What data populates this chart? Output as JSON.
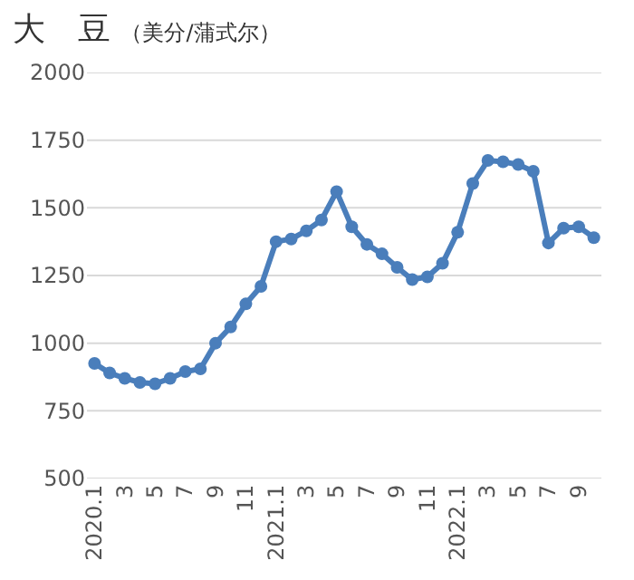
{
  "chart_data": {
    "type": "line",
    "title": "大　豆",
    "subtitle": "（美分/蒲式尔）",
    "categories": [
      "2020.1",
      null,
      "3",
      null,
      "5",
      null,
      "7",
      null,
      "9",
      null,
      "11",
      null,
      "2021.1",
      null,
      "3",
      null,
      "5",
      null,
      "7",
      null,
      "9",
      null,
      "11",
      null,
      "2022.1",
      null,
      "3",
      null,
      "5",
      null,
      "7",
      null,
      "9",
      null
    ],
    "series": [
      {
        "color": "#4a7ebb",
        "values": [
          925,
          890,
          870,
          855,
          850,
          870,
          895,
          905,
          1000,
          1060,
          1145,
          1210,
          1375,
          1385,
          1415,
          1455,
          1560,
          1430,
          1365,
          1330,
          1280,
          1235,
          1245,
          1295,
          1410,
          1590,
          1675,
          1670,
          1660,
          1635,
          1370,
          1425,
          1430,
          1390
        ]
      }
    ],
    "ylim": [
      500,
      2000
    ],
    "yticks": [
      500,
      750,
      1000,
      1250,
      1500,
      1750,
      2000
    ],
    "grid": "y",
    "marker": "circle"
  }
}
